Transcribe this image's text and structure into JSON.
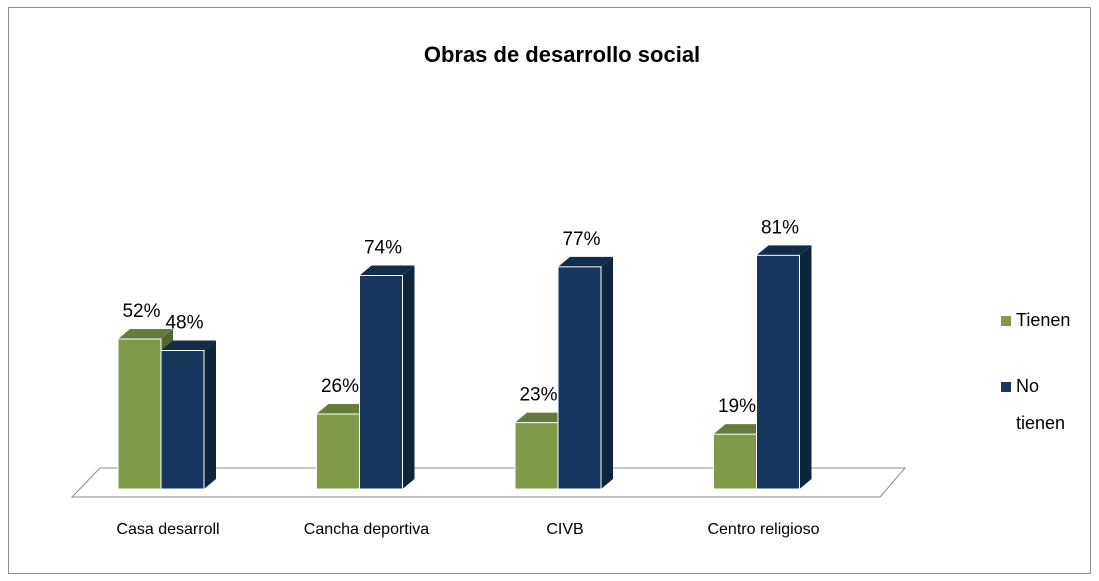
{
  "chart_data": {
    "type": "bar3d",
    "title": "Obras de desarrollo social",
    "categories": [
      "Casa desarroll",
      "Cancha deportiva",
      "CIVB",
      "Centro religioso"
    ],
    "series": [
      {
        "name": "Tienen",
        "color": "#7f9a48",
        "values": [
          52,
          26,
          23,
          19
        ],
        "value_labels": [
          "52%",
          "26%",
          "23%",
          "19%"
        ]
      },
      {
        "name": "No tienen",
        "color": "#17375e",
        "values": [
          48,
          74,
          77,
          81
        ],
        "value_labels": [
          "48%",
          "74%",
          "77%",
          "81%"
        ]
      }
    ],
    "legend": "right"
  }
}
